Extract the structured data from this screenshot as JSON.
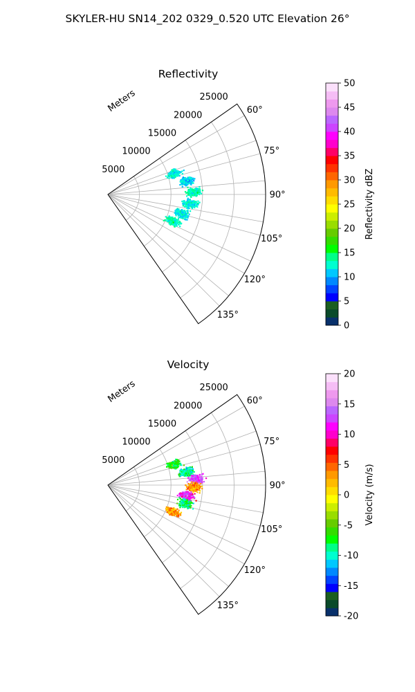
{
  "figure": {
    "suptitle": "SKYLER-HU  SN14_202  0329_0.520 UTC Elevation 26°"
  },
  "chart_data": [
    {
      "type": "polar-sector",
      "title": "Reflectivity",
      "radial_label": "Meters",
      "radial_ticks": [
        5000,
        10000,
        15000,
        20000,
        25000
      ],
      "angular_ticks": [
        60,
        75,
        90,
        105,
        120,
        135
      ],
      "angular_tick_labels": [
        "60°",
        "75°",
        "90°",
        "105°",
        "120°",
        "135°"
      ],
      "theta_range_deg": [
        55,
        145
      ],
      "r_max": 25000,
      "colorbar": {
        "label": "Reflectivity dBZ",
        "min": 0,
        "max": 50,
        "ticks": [
          0,
          5,
          10,
          15,
          20,
          25,
          30,
          35,
          40,
          45,
          50
        ],
        "colors": [
          "#08306b",
          "#0a4a2a",
          "#1b5e20",
          "#0000ff",
          "#0044ff",
          "#0088ff",
          "#00c8ff",
          "#00ffd0",
          "#00ff88",
          "#00ff00",
          "#33dd00",
          "#66cc00",
          "#99dd00",
          "#ccee00",
          "#ffff00",
          "#ffdd00",
          "#ffbb00",
          "#ff9900",
          "#ff6600",
          "#ff3300",
          "#ff0000",
          "#ff0066",
          "#ff00cc",
          "#ff00ff",
          "#cc44ff",
          "#bb66ff",
          "#dd88ee",
          "#ee99ee",
          "#f5bdf5",
          "#fbe0fb"
        ]
      },
      "echo_clusters": [
        {
          "azimuth_deg": 72,
          "range_m": 11000,
          "value": 12
        },
        {
          "azimuth_deg": 80,
          "range_m": 12500,
          "value": 11
        },
        {
          "azimuth_deg": 88,
          "range_m": 13500,
          "value": 13
        },
        {
          "azimuth_deg": 96,
          "range_m": 13000,
          "value": 12
        },
        {
          "azimuth_deg": 104,
          "range_m": 12000,
          "value": 12
        },
        {
          "azimuth_deg": 112,
          "range_m": 11000,
          "value": 13
        }
      ]
    },
    {
      "type": "polar-sector",
      "title": "Velocity",
      "radial_label": "Meters",
      "radial_ticks": [
        5000,
        10000,
        15000,
        20000,
        25000
      ],
      "angular_ticks": [
        60,
        75,
        90,
        105,
        120,
        135
      ],
      "angular_tick_labels": [
        "60°",
        "75°",
        "90°",
        "105°",
        "120°",
        "135°"
      ],
      "theta_range_deg": [
        55,
        145
      ],
      "r_max": 25000,
      "colorbar": {
        "label": "Velocity (m/s)",
        "min": -20,
        "max": 20,
        "ticks": [
          -20,
          -15,
          -10,
          -5,
          0,
          5,
          10,
          15,
          20
        ],
        "colors": [
          "#08306b",
          "#0a4a2a",
          "#1b5e20",
          "#0000ff",
          "#0044ff",
          "#0088ff",
          "#00c8ff",
          "#00ffd0",
          "#00ff88",
          "#00ff00",
          "#33dd00",
          "#66cc00",
          "#99dd00",
          "#ccee00",
          "#ffff00",
          "#ffdd00",
          "#ffbb00",
          "#ff9900",
          "#ff6600",
          "#ff3300",
          "#ff0000",
          "#ff0066",
          "#ff00cc",
          "#ff00ff",
          "#cc44ff",
          "#bb66ff",
          "#dd88ee",
          "#ee99ee",
          "#f5bdf5",
          "#fbe0fb"
        ]
      },
      "echo_clusters": [
        {
          "azimuth_deg": 72,
          "range_m": 11000,
          "value": -7
        },
        {
          "azimuth_deg": 80,
          "range_m": 12500,
          "value": -9
        },
        {
          "azimuth_deg": 86,
          "range_m": 14000,
          "value": 13
        },
        {
          "azimuth_deg": 91,
          "range_m": 13500,
          "value": 3
        },
        {
          "azimuth_deg": 97,
          "range_m": 12500,
          "value": 12
        },
        {
          "azimuth_deg": 103,
          "range_m": 12500,
          "value": -8
        },
        {
          "azimuth_deg": 112,
          "range_m": 11000,
          "value": 3
        }
      ]
    }
  ]
}
